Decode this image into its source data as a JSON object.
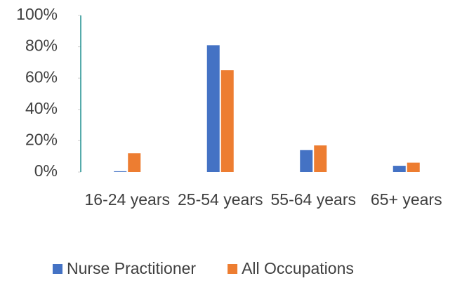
{
  "chart_data": {
    "type": "bar",
    "categories": [
      "16-24 years",
      "25-54 years",
      "55-64 years",
      "65+ years"
    ],
    "series": [
      {
        "name": "Nurse Practitioner",
        "color": "#4472c4",
        "values": [
          0.5,
          81,
          14,
          4
        ]
      },
      {
        "name": "All Occupations",
        "color": "#ed7d31",
        "values": [
          12,
          65,
          17,
          6
        ]
      }
    ],
    "ylim": [
      0,
      100
    ],
    "yticks": [
      {
        "value": 0,
        "label": "0%"
      },
      {
        "value": 20,
        "label": "20%"
      },
      {
        "value": 40,
        "label": "40%"
      },
      {
        "value": 60,
        "label": "60%"
      },
      {
        "value": 80,
        "label": "80%"
      },
      {
        "value": 100,
        "label": "100%"
      }
    ],
    "legend": "bottom"
  }
}
